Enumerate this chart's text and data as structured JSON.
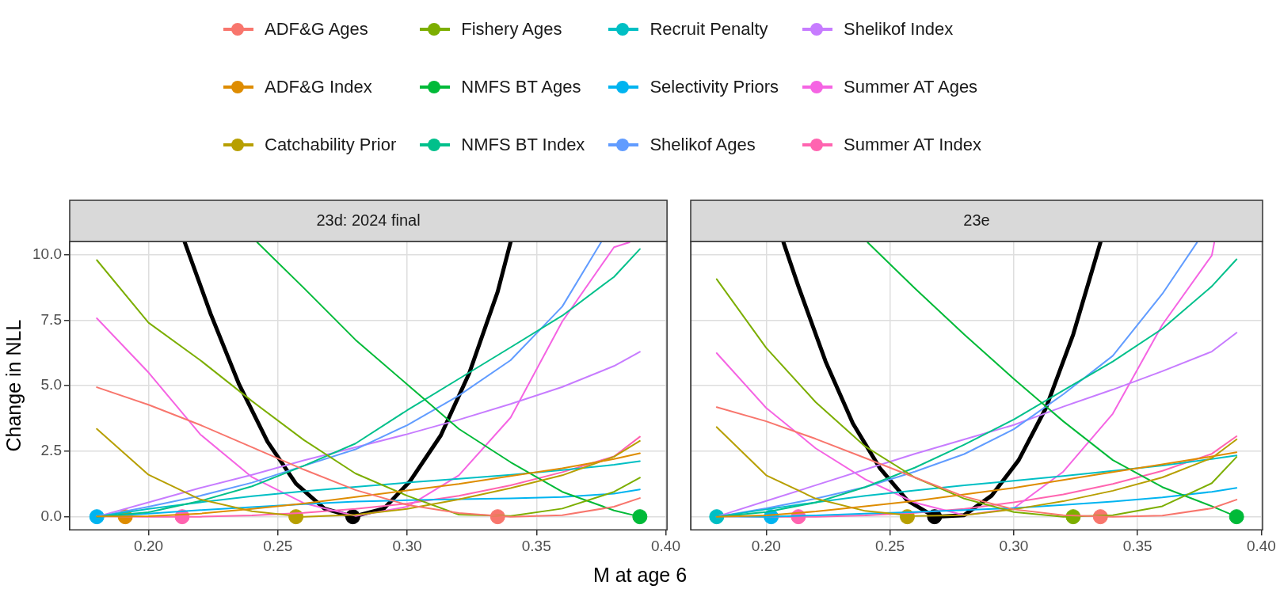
{
  "chart_data": [
    {
      "type": "line",
      "title": "23d: 2024 final",
      "xlabel": "M at age 6",
      "ylabel": "Change in NLL",
      "legend": "top",
      "grid": true,
      "x": [
        0.18,
        0.2,
        0.22,
        0.24,
        0.26,
        0.28,
        0.3,
        0.32,
        0.34,
        0.36,
        0.38,
        0.39
      ],
      "xlim": [
        0.1695,
        0.4005
      ],
      "xticks": [
        {
          "value": 0.2,
          "label": "0.20"
        },
        {
          "value": 0.25,
          "label": "0.25"
        },
        {
          "value": 0.3,
          "label": "0.30"
        },
        {
          "value": 0.35,
          "label": "0.35"
        },
        {
          "value": 0.4,
          "label": "0.40"
        }
      ],
      "ylim": [
        -0.5,
        10.5
      ],
      "yticks": [
        {
          "value": 0,
          "label": "0.0"
        },
        2.5,
        {
          "value": 5,
          "label": "5.0"
        },
        7.5,
        {
          "value": 10,
          "label": "10.0"
        }
      ],
      "series": [
        {
          "name": "ADF&G Ages",
          "color": "#f8766d",
          "values": [
            4.94,
            4.27,
            3.5,
            2.65,
            1.8,
            1.02,
            0.45,
            0.14,
            0,
            0.06,
            0.38,
            0.71
          ]
        },
        {
          "name": "ADF&G Index",
          "color": "#de8c00",
          "values": [
            0.01,
            0.02,
            0.12,
            0.3,
            0.5,
            0.75,
            1.0,
            1.25,
            1.55,
            1.85,
            2.2,
            2.42
          ]
        },
        {
          "name": "Catchability Prior",
          "color": "#b79f00",
          "values": [
            3.35,
            1.6,
            0.66,
            0.21,
            0,
            0.07,
            0.3,
            0.66,
            1.09,
            1.58,
            2.29,
            2.89
          ]
        },
        {
          "name": "Fishery Ages",
          "color": "#7cae00",
          "values": [
            9.79,
            7.4,
            5.97,
            4.41,
            2.93,
            1.65,
            0.8,
            0.08,
            0.03,
            0.31,
            0.95,
            1.49
          ]
        },
        {
          "name": "NMFS BT Ages",
          "color": "#00ba38",
          "x": [
            0.242,
            0.26,
            0.28,
            0.3,
            0.32,
            0.34,
            0.36,
            0.38,
            0.39
          ],
          "values": [
            10.47,
            8.73,
            6.75,
            5.05,
            3.35,
            2.08,
            0.95,
            0.24,
            0
          ]
        },
        {
          "name": "NMFS BT Index",
          "color": "#00c08b",
          "values": [
            0,
            0.17,
            0.6,
            1.16,
            1.94,
            2.79,
            4.06,
            5.26,
            6.46,
            7.67,
            9.15,
            10.21
          ]
        },
        {
          "name": "Recruit Penalty",
          "color": "#00bfc4",
          "values": [
            0,
            0.3,
            0.55,
            0.78,
            0.97,
            1.14,
            1.3,
            1.45,
            1.6,
            1.78,
            1.98,
            2.12
          ]
        },
        {
          "name": "Selectivity Priors",
          "color": "#00b4f0",
          "values": [
            0,
            0.12,
            0.25,
            0.37,
            0.48,
            0.58,
            0.63,
            0.67,
            0.7,
            0.75,
            0.88,
            1.04
          ]
        },
        {
          "name": "Shelikof Ages",
          "color": "#619cff",
          "x": [
            0.18,
            0.2,
            0.22,
            0.24,
            0.26,
            0.28,
            0.3,
            0.32,
            0.34,
            0.36,
            0.375
          ],
          "values": [
            0,
            0.38,
            0.8,
            1.3,
            1.94,
            2.57,
            3.49,
            4.62,
            5.97,
            8.02,
            10.47
          ]
        },
        {
          "name": "Shelikof Index",
          "color": "#c77cff",
          "values": [
            0,
            0.55,
            1.1,
            1.6,
            2.15,
            2.65,
            3.15,
            3.7,
            4.3,
            4.95,
            5.75,
            6.29
          ]
        },
        {
          "name": "Summer AT Ages",
          "color": "#f564e3",
          "x": [
            0.18,
            0.2,
            0.22,
            0.24,
            0.26,
            0.28,
            0.3,
            0.32,
            0.34,
            0.36,
            0.38,
            0.386
          ],
          "values": [
            7.57,
            5.5,
            3.14,
            1.51,
            0.52,
            0.03,
            0.38,
            1.58,
            3.78,
            7.45,
            10.28,
            10.47
          ]
        },
        {
          "name": "Summer AT Index",
          "color": "#ff64b0",
          "values": [
            0.02,
            0,
            0,
            0.05,
            0.15,
            0.3,
            0.5,
            0.8,
            1.2,
            1.7,
            2.3,
            3.05
          ]
        },
        {
          "color": "#000000",
          "x": [
            0.214,
            0.224,
            0.235,
            0.246,
            0.257,
            0.268,
            0.279,
            0.291,
            0.301,
            0.313,
            0.324,
            0.335,
            0.34
          ],
          "values": [
            10.47,
            7.74,
            5.05,
            2.86,
            1.26,
            0.31,
            0,
            0.31,
            1.34,
            3.1,
            5.47,
            8.58,
            10.47
          ]
        },
        {
          "type": "scatter",
          "marker": "circle",
          "x": [
            0.18,
            0.191,
            0.213,
            0.257,
            0.279,
            0.335,
            0.39
          ],
          "values": [
            0,
            0,
            0,
            0,
            0,
            0,
            0
          ],
          "colors": [
            "#00b4f0",
            "#de8c00",
            "#ff64b0",
            "#b79f00",
            "#000000",
            "#f8766d",
            "#00ba38"
          ]
        }
      ]
    },
    {
      "type": "line",
      "title": "23e",
      "legend": "top",
      "grid": true,
      "tick_labels": "x",
      "x": [
        0.18,
        0.2,
        0.22,
        0.24,
        0.26,
        0.28,
        0.3,
        0.32,
        0.34,
        0.36,
        0.38,
        0.39
      ],
      "xlim": [
        0.1695,
        0.4005
      ],
      "xticks": [
        {
          "value": 0.2,
          "label": "0.20"
        },
        {
          "value": 0.25,
          "label": "0.25"
        },
        {
          "value": 0.3,
          "label": "0.30"
        },
        {
          "value": 0.35,
          "label": "0.35"
        },
        {
          "value": 0.4,
          "label": "0.40"
        }
      ],
      "ylim": [
        -0.5,
        10.5
      ],
      "yticks": [
        0,
        2.5,
        5,
        7.5,
        10
      ],
      "series": [
        {
          "name": "ADF&G Ages",
          "color": "#f8766d",
          "values": [
            4.18,
            3.64,
            2.97,
            2.24,
            1.5,
            0.77,
            0.28,
            0.06,
            0,
            0.04,
            0.32,
            0.65
          ]
        },
        {
          "name": "ADF&G Index",
          "color": "#de8c00",
          "values": [
            0,
            0.05,
            0.2,
            0.4,
            0.6,
            0.85,
            1.1,
            1.4,
            1.7,
            2.0,
            2.3,
            2.46
          ]
        },
        {
          "name": "Catchability Prior",
          "color": "#b79f00",
          "values": [
            3.42,
            1.58,
            0.69,
            0.22,
            0.03,
            0.06,
            0.28,
            0.59,
            0.99,
            1.5,
            2.24,
            2.95
          ]
        },
        {
          "name": "Fishery Ages",
          "color": "#7cae00",
          "values": [
            9.06,
            6.44,
            4.37,
            2.68,
            1.5,
            0.69,
            0.18,
            0,
            0.06,
            0.4,
            1.28,
            2.28
          ]
        },
        {
          "name": "NMFS BT Ages",
          "color": "#00ba38",
          "x": [
            0.241,
            0.26,
            0.28,
            0.3,
            0.32,
            0.34,
            0.36,
            0.38,
            0.39
          ],
          "values": [
            10.46,
            8.72,
            6.95,
            5.26,
            3.64,
            2.16,
            1.13,
            0.4,
            0
          ]
        },
        {
          "name": "NMFS BT Index",
          "color": "#00c08b",
          "values": [
            0,
            0.18,
            0.54,
            1.13,
            1.87,
            2.75,
            3.71,
            4.82,
            5.92,
            7.17,
            8.79,
            9.82
          ]
        },
        {
          "name": "Recruit Penalty",
          "color": "#00bfc4",
          "values": [
            0,
            0.28,
            0.55,
            0.8,
            1.0,
            1.2,
            1.37,
            1.55,
            1.75,
            1.95,
            2.2,
            2.34
          ]
        },
        {
          "name": "Selectivity Priors",
          "color": "#00b4f0",
          "values": [
            0.02,
            0,
            0.05,
            0.12,
            0.18,
            0.25,
            0.33,
            0.45,
            0.58,
            0.74,
            0.95,
            1.1
          ]
        },
        {
          "name": "Shelikof Ages",
          "color": "#619cff",
          "x": [
            0.18,
            0.2,
            0.22,
            0.24,
            0.26,
            0.28,
            0.3,
            0.32,
            0.34,
            0.36,
            0.374
          ],
          "values": [
            0,
            0.32,
            0.69,
            1.13,
            1.72,
            2.39,
            3.34,
            4.67,
            6.14,
            8.5,
            10.46
          ]
        },
        {
          "name": "Shelikof Index",
          "color": "#c77cff",
          "values": [
            0,
            0.6,
            1.2,
            1.8,
            2.4,
            2.95,
            3.5,
            4.2,
            4.85,
            5.55,
            6.3,
            7.02
          ]
        },
        {
          "name": "Summer AT Ages",
          "color": "#f564e3",
          "x": [
            0.18,
            0.2,
            0.22,
            0.24,
            0.26,
            0.28,
            0.3,
            0.32,
            0.34,
            0.36,
            0.38,
            0.381
          ],
          "values": [
            6.24,
            4.15,
            2.61,
            1.43,
            0.54,
            0.06,
            0.32,
            1.72,
            3.93,
            7.32,
            9.97,
            10.46
          ]
        },
        {
          "name": "Summer AT Index",
          "color": "#ff64b0",
          "values": [
            0.02,
            0,
            0,
            0.05,
            0.15,
            0.3,
            0.55,
            0.85,
            1.25,
            1.75,
            2.4,
            3.07
          ]
        },
        {
          "color": "#000000",
          "x": [
            0.207,
            0.213,
            0.224,
            0.235,
            0.246,
            0.257,
            0.268,
            0.28,
            0.291,
            0.302,
            0.313,
            0.324,
            0.335
          ],
          "values": [
            10.46,
            8.79,
            5.92,
            3.56,
            1.84,
            0.62,
            0,
            0.06,
            0.8,
            2.16,
            4.15,
            6.95,
            10.46
          ]
        },
        {
          "type": "scatter",
          "marker": "circle",
          "x": [
            0.18,
            0.202,
            0.213,
            0.257,
            0.268,
            0.324,
            0.335,
            0.39
          ],
          "values": [
            0,
            0,
            0,
            0,
            0,
            0,
            0,
            0
          ],
          "colors": [
            "#00bfc4",
            "#00b4f0",
            "#ff64b0",
            "#b79f00",
            "#000000",
            "#7cae00",
            "#f8766d",
            "#00ba38"
          ]
        }
      ]
    }
  ]
}
